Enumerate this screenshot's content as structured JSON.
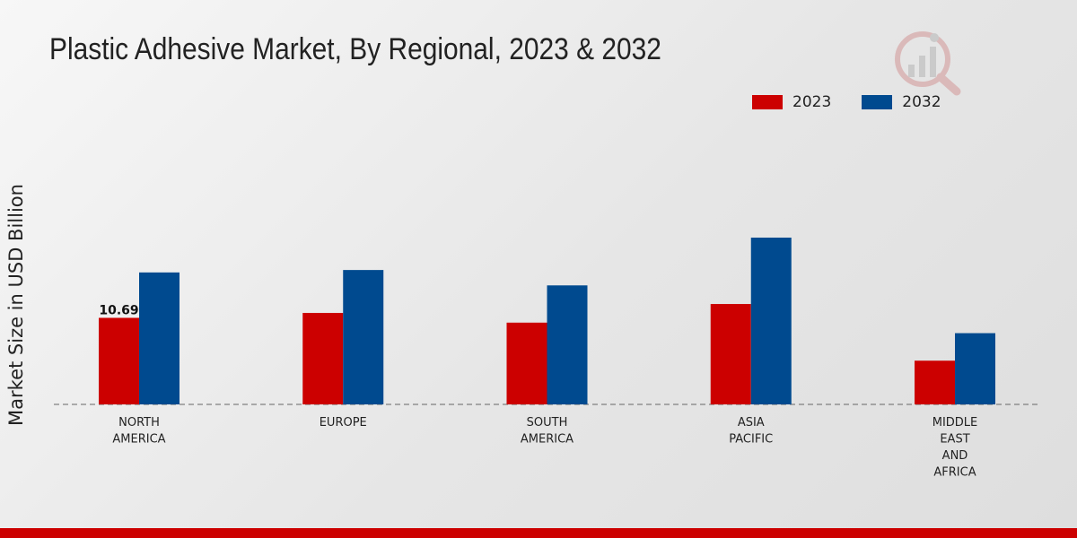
{
  "title": "Plastic Adhesive Market, By Regional, 2023 & 2032",
  "colors": {
    "series_2023": "#cc0000",
    "series_2032": "#004a8f",
    "footer": "#cc0000"
  },
  "logo_icon": "research-logo-icon",
  "chart_data": {
    "type": "bar",
    "title": "Plastic Adhesive Market, By Regional, 2023 & 2032",
    "xlabel": "",
    "ylabel": "Market Size in USD Billion",
    "categories": [
      [
        "NORTH",
        "AMERICA"
      ],
      [
        "EUROPE"
      ],
      [
        "SOUTH",
        "AMERICA"
      ],
      [
        "ASIA",
        "PACIFIC"
      ],
      [
        "MIDDLE",
        "EAST",
        "AND",
        "AFRICA"
      ]
    ],
    "series": [
      {
        "name": "2023",
        "color": "#cc0000",
        "values": [
          10.69,
          11.3,
          10.1,
          12.4,
          5.4
        ]
      },
      {
        "name": "2032",
        "color": "#004a8f",
        "values": [
          16.3,
          16.6,
          14.7,
          20.6,
          8.8
        ]
      }
    ],
    "data_labels": [
      {
        "series": 0,
        "index": 0,
        "text": "10.69"
      }
    ],
    "ylim": [
      0,
      35
    ],
    "grid": false,
    "legend": "top-right"
  }
}
